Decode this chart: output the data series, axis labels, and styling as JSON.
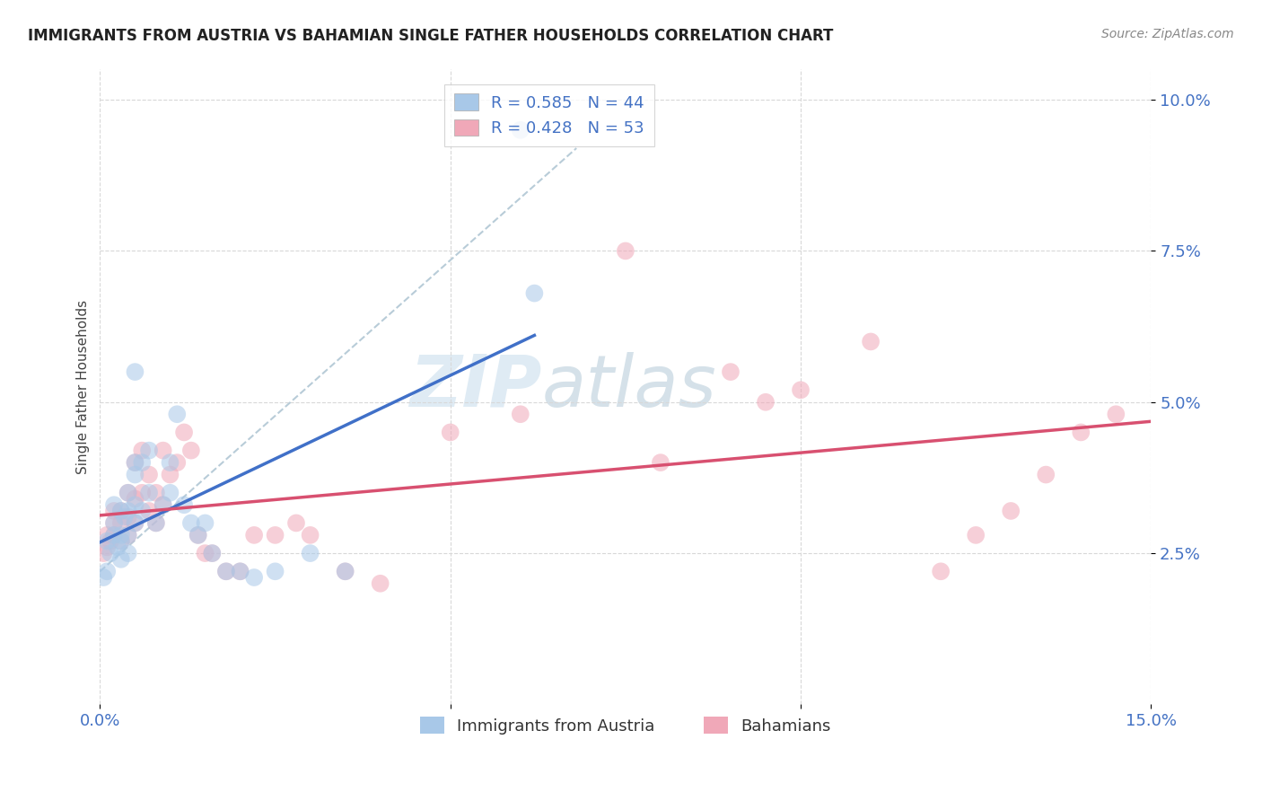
{
  "title": "IMMIGRANTS FROM AUSTRIA VS BAHAMIAN SINGLE FATHER HOUSEHOLDS CORRELATION CHART",
  "source": "Source: ZipAtlas.com",
  "series1_label": "Immigrants from Austria",
  "series2_label": "Bahamians",
  "series1_color": "#a8c8e8",
  "series2_color": "#f0a8b8",
  "line1_color": "#4070c8",
  "line2_color": "#d85070",
  "trend_line_color": "#b8ccd8",
  "watermark_zip": "ZIP",
  "watermark_atlas": "atlas",
  "background_color": "#ffffff",
  "grid_color": "#d8d8d8",
  "title_color": "#222222",
  "axis_tick_color": "#4472c4",
  "ylabel_color": "#444444",
  "legend1_label": "R = 0.585   N = 44",
  "legend2_label": "R = 0.428   N = 53",
  "legend1_color": "#a8c8e8",
  "legend2_color": "#f0a8b8",
  "legend_text_color": "#4472c4",
  "xlim": [
    0.0,
    0.15
  ],
  "ylim": [
    0.0,
    0.105
  ],
  "austria_x": [
    0.0005,
    0.001,
    0.001,
    0.0015,
    0.002,
    0.002,
    0.002,
    0.0025,
    0.003,
    0.003,
    0.003,
    0.003,
    0.0035,
    0.004,
    0.004,
    0.004,
    0.004,
    0.005,
    0.005,
    0.005,
    0.005,
    0.005,
    0.006,
    0.006,
    0.007,
    0.007,
    0.008,
    0.009,
    0.01,
    0.01,
    0.011,
    0.012,
    0.013,
    0.014,
    0.015,
    0.016,
    0.018,
    0.02,
    0.022,
    0.025,
    0.03,
    0.035,
    0.06,
    0.062
  ],
  "austria_y": [
    0.021,
    0.027,
    0.022,
    0.025,
    0.028,
    0.03,
    0.033,
    0.026,
    0.024,
    0.027,
    0.028,
    0.032,
    0.031,
    0.025,
    0.028,
    0.032,
    0.035,
    0.03,
    0.033,
    0.038,
    0.04,
    0.055,
    0.032,
    0.04,
    0.035,
    0.042,
    0.03,
    0.033,
    0.035,
    0.04,
    0.048,
    0.033,
    0.03,
    0.028,
    0.03,
    0.025,
    0.022,
    0.022,
    0.021,
    0.022,
    0.025,
    0.022,
    0.095,
    0.068
  ],
  "bahamas_x": [
    0.0005,
    0.001,
    0.001,
    0.0015,
    0.002,
    0.002,
    0.002,
    0.003,
    0.003,
    0.003,
    0.004,
    0.004,
    0.004,
    0.005,
    0.005,
    0.005,
    0.006,
    0.006,
    0.007,
    0.007,
    0.008,
    0.008,
    0.009,
    0.009,
    0.01,
    0.011,
    0.012,
    0.013,
    0.014,
    0.015,
    0.016,
    0.018,
    0.02,
    0.022,
    0.025,
    0.028,
    0.03,
    0.035,
    0.04,
    0.05,
    0.06,
    0.075,
    0.08,
    0.09,
    0.095,
    0.1,
    0.11,
    0.12,
    0.125,
    0.13,
    0.135,
    0.14,
    0.145
  ],
  "bahamas_y": [
    0.025,
    0.026,
    0.028,
    0.027,
    0.028,
    0.03,
    0.032,
    0.027,
    0.03,
    0.032,
    0.028,
    0.031,
    0.035,
    0.03,
    0.034,
    0.04,
    0.035,
    0.042,
    0.032,
    0.038,
    0.03,
    0.035,
    0.033,
    0.042,
    0.038,
    0.04,
    0.045,
    0.042,
    0.028,
    0.025,
    0.025,
    0.022,
    0.022,
    0.028,
    0.028,
    0.03,
    0.028,
    0.022,
    0.02,
    0.045,
    0.048,
    0.075,
    0.04,
    0.055,
    0.05,
    0.052,
    0.06,
    0.022,
    0.028,
    0.032,
    0.038,
    0.045,
    0.048
  ]
}
